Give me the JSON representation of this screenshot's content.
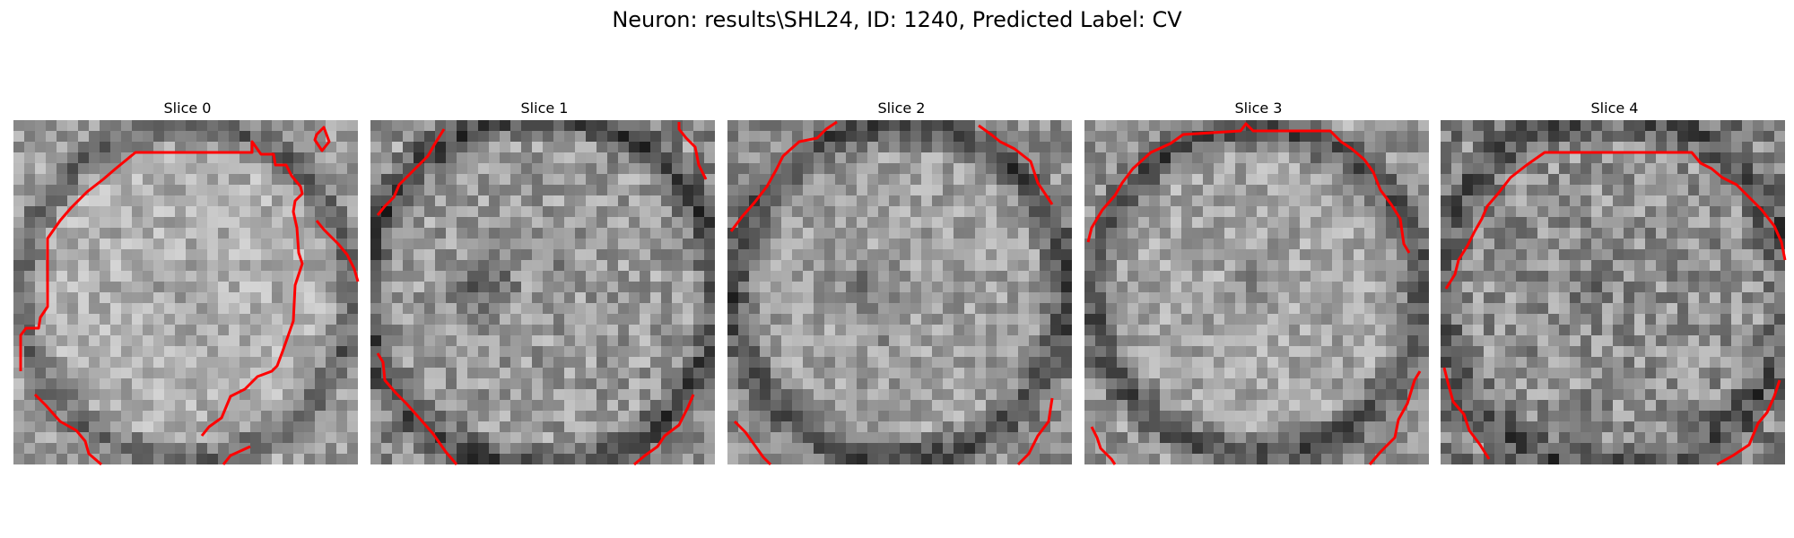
{
  "title": "Neuron: results\\SHL24, ID: 1240, Predicted Label: CV",
  "contour_color": "#ff0000",
  "slices": [
    {
      "label": "Slice 0"
    },
    {
      "label": "Slice 1"
    },
    {
      "label": "Slice 2"
    },
    {
      "label": "Slice 3"
    },
    {
      "label": "Slice 4"
    }
  ]
}
